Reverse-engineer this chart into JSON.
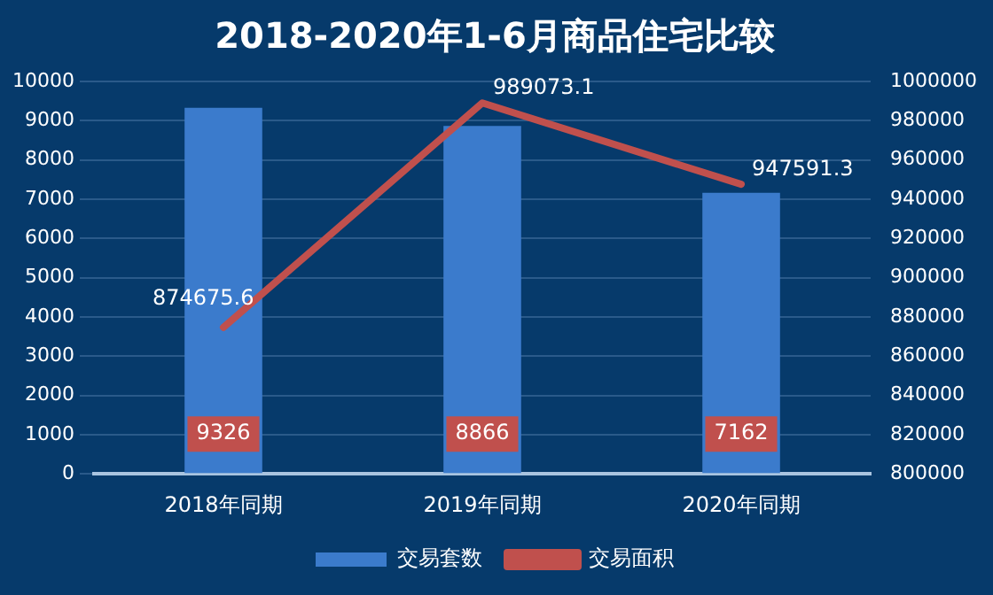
{
  "chart_data": {
    "type": "bar",
    "title": "2018-2020年1-6月商品住宅比较",
    "categories": [
      "2018年同期",
      "2019年同期",
      "2020年同期"
    ],
    "series": [
      {
        "name": "交易套数",
        "color": "#3b7bcc",
        "values": [
          9326,
          8866,
          7162
        ]
      },
      {
        "name": "交易面积",
        "type": "line",
        "axis": "y2",
        "color": "#c0504d",
        "values": [
          874675.6,
          989073.1,
          947591.3
        ]
      }
    ],
    "ylim": [
      0,
      10000
    ],
    "yticks": [
      0,
      1000,
      2000,
      3000,
      4000,
      5000,
      6000,
      7000,
      8000,
      9000,
      10000
    ],
    "y2lim": [
      800000,
      1000000
    ],
    "y2ticks": [
      800000,
      820000,
      840000,
      860000,
      880000,
      900000,
      920000,
      940000,
      960000,
      980000,
      1000000
    ],
    "grid": "y",
    "legend": "bottom",
    "data_labels": true,
    "marker": "none"
  }
}
